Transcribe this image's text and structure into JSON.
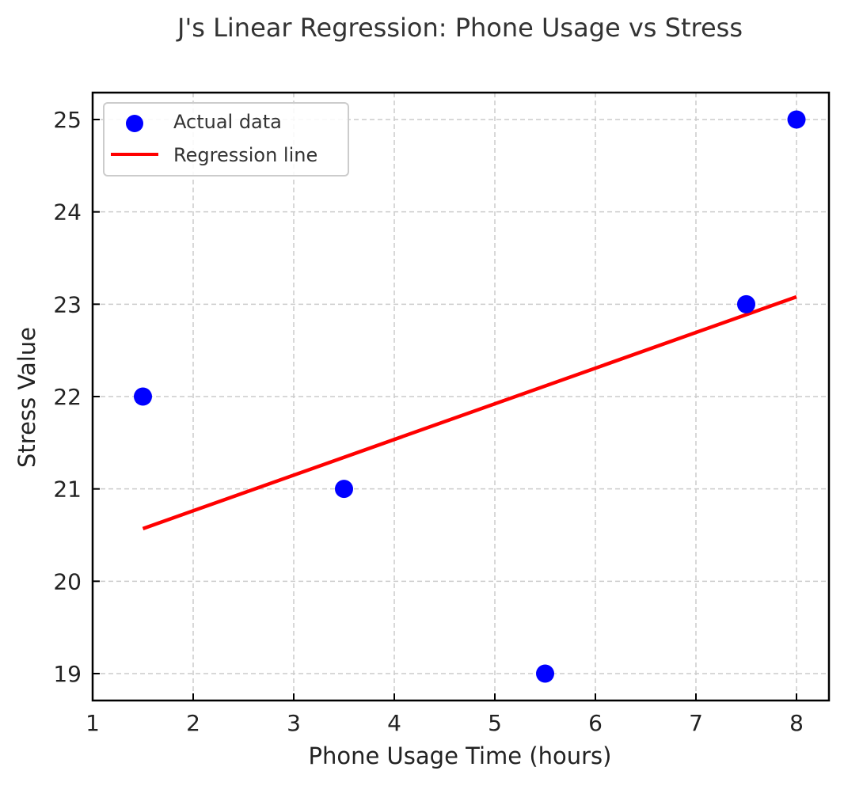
{
  "chart_data": {
    "type": "scatter",
    "title": "J's Linear Regression: Phone Usage vs Stress",
    "xlabel": "Phone Usage Time (hours)",
    "ylabel": "Stress Value",
    "xlim": [
      1,
      8.32
    ],
    "ylim": [
      18.7,
      25.3
    ],
    "xticks": [
      "1",
      "2",
      "3",
      "4",
      "5",
      "6",
      "7",
      "8"
    ],
    "yticks": [
      "19",
      "20",
      "21",
      "22",
      "23",
      "24",
      "25"
    ],
    "grid": true,
    "legend_position": "upper left",
    "series": [
      {
        "name": "Actual data",
        "kind": "scatter",
        "color": "#0000ff",
        "x": [
          1.5,
          3.5,
          5.5,
          7.5,
          8
        ],
        "y": [
          22,
          21,
          19,
          23,
          25
        ]
      },
      {
        "name": "Regression line",
        "kind": "line",
        "color": "#ff0000",
        "x": [
          1.5,
          8
        ],
        "y": [
          20.57,
          23.08
        ]
      }
    ]
  }
}
